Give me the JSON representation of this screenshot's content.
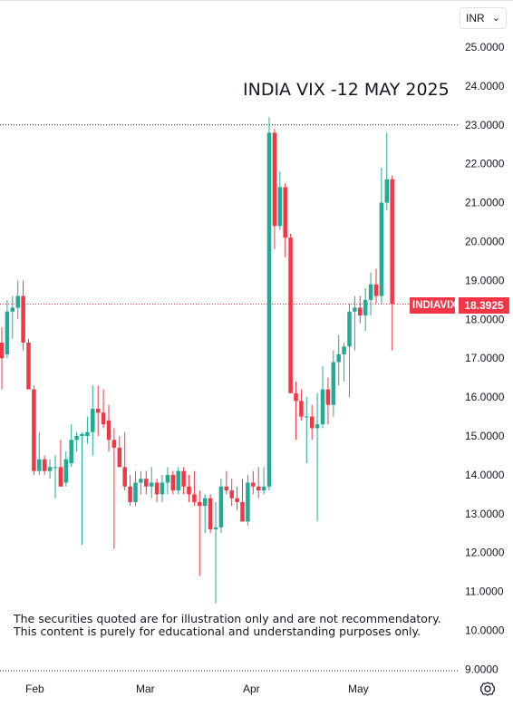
{
  "currency_selector": {
    "value": "INR"
  },
  "price_label": {
    "symbol": "INDIAVIX",
    "value": "18.3925"
  },
  "disclaimer": {
    "line1": "The securities quoted are for illustration only and are not recommendatory.",
    "line2": "This content is purely for educational and understanding purposes only."
  },
  "icons": {
    "settings": "settings-icon",
    "chevron": "chevron-down-icon"
  },
  "colors": {
    "up": "#22ab94",
    "down": "#f23645",
    "grid_dots": "#b2b5be"
  },
  "chart_data": {
    "type": "candlestick",
    "title": "INDIA VIX -12 MAY 2025",
    "ylim": [
      9,
      25.5
    ],
    "y_ticks": [
      "25.0000",
      "24.0000",
      "23.0000",
      "22.0000",
      "21.0000",
      "20.0000",
      "19.0000",
      "18.0000",
      "17.0000",
      "16.0000",
      "15.0000",
      "14.0000",
      "13.0000",
      "12.0000",
      "11.0000",
      "10.0000",
      "9.0000"
    ],
    "x_ticks": [
      "Feb",
      "Mar",
      "Apr",
      "May"
    ],
    "last_price": 18.3925,
    "dotted_level": 23.0,
    "grid": false,
    "candles": [
      {
        "o": 17.4,
        "h": 17.8,
        "l": 16.2,
        "c": 17.0
      },
      {
        "o": 17.1,
        "h": 18.5,
        "l": 17.0,
        "c": 18.2
      },
      {
        "o": 18.2,
        "h": 18.6,
        "l": 17.5,
        "c": 18.3
      },
      {
        "o": 18.3,
        "h": 19.0,
        "l": 18.0,
        "c": 18.6
      },
      {
        "o": 18.6,
        "h": 19.0,
        "l": 17.2,
        "c": 17.4
      },
      {
        "o": 17.4,
        "h": 17.5,
        "l": 16.2,
        "c": 16.2
      },
      {
        "o": 16.2,
        "h": 16.3,
        "l": 14.0,
        "c": 14.1
      },
      {
        "o": 14.1,
        "h": 15.1,
        "l": 14.0,
        "c": 14.4
      },
      {
        "o": 14.4,
        "h": 14.5,
        "l": 14.0,
        "c": 14.1
      },
      {
        "o": 14.1,
        "h": 14.4,
        "l": 13.9,
        "c": 14.2
      },
      {
        "o": 14.2,
        "h": 14.5,
        "l": 13.4,
        "c": 14.2
      },
      {
        "o": 14.2,
        "h": 14.9,
        "l": 13.7,
        "c": 13.7
      },
      {
        "o": 13.8,
        "h": 14.6,
        "l": 13.7,
        "c": 14.4
      },
      {
        "o": 14.3,
        "h": 15.3,
        "l": 14.2,
        "c": 14.9
      },
      {
        "o": 14.9,
        "h": 15.1,
        "l": 14.6,
        "c": 15.0
      },
      {
        "o": 15.0,
        "h": 15.1,
        "l": 12.2,
        "c": 15.05
      },
      {
        "o": 15.0,
        "h": 15.5,
        "l": 14.8,
        "c": 15.1
      },
      {
        "o": 15.1,
        "h": 16.3,
        "l": 14.5,
        "c": 15.7
      },
      {
        "o": 15.7,
        "h": 16.3,
        "l": 15.0,
        "c": 15.6
      },
      {
        "o": 15.6,
        "h": 16.2,
        "l": 15.2,
        "c": 15.3
      },
      {
        "o": 15.4,
        "h": 15.8,
        "l": 14.6,
        "c": 14.9
      },
      {
        "o": 14.9,
        "h": 15.2,
        "l": 12.1,
        "c": 14.7
      },
      {
        "o": 14.7,
        "h": 15.0,
        "l": 14.2,
        "c": 14.2
      },
      {
        "o": 14.2,
        "h": 15.1,
        "l": 13.6,
        "c": 13.7
      },
      {
        "o": 13.7,
        "h": 14.0,
        "l": 13.2,
        "c": 13.3
      },
      {
        "o": 13.3,
        "h": 14.1,
        "l": 13.2,
        "c": 13.8
      },
      {
        "o": 13.8,
        "h": 14.1,
        "l": 13.5,
        "c": 13.9
      },
      {
        "o": 13.9,
        "h": 14.1,
        "l": 13.5,
        "c": 13.7
      },
      {
        "o": 13.7,
        "h": 14.2,
        "l": 13.4,
        "c": 13.8
      },
      {
        "o": 13.8,
        "h": 13.9,
        "l": 13.3,
        "c": 13.5
      },
      {
        "o": 13.5,
        "h": 14.0,
        "l": 13.3,
        "c": 13.8
      },
      {
        "o": 13.8,
        "h": 14.2,
        "l": 13.5,
        "c": 14.0
      },
      {
        "o": 14.0,
        "h": 14.1,
        "l": 13.5,
        "c": 13.6
      },
      {
        "o": 13.6,
        "h": 14.2,
        "l": 13.5,
        "c": 14.1
      },
      {
        "o": 14.1,
        "h": 14.2,
        "l": 13.5,
        "c": 13.7
      },
      {
        "o": 13.7,
        "h": 14.0,
        "l": 13.3,
        "c": 13.5
      },
      {
        "o": 13.5,
        "h": 14.1,
        "l": 13.2,
        "c": 13.3
      },
      {
        "o": 13.3,
        "h": 13.6,
        "l": 11.4,
        "c": 13.2
      },
      {
        "o": 13.2,
        "h": 13.5,
        "l": 12.5,
        "c": 13.4
      },
      {
        "o": 13.4,
        "h": 13.5,
        "l": 12.5,
        "c": 12.6
      },
      {
        "o": 12.6,
        "h": 13.3,
        "l": 10.7,
        "c": 12.65
      },
      {
        "o": 12.65,
        "h": 13.9,
        "l": 12.5,
        "c": 13.7
      },
      {
        "o": 13.7,
        "h": 14.1,
        "l": 13.5,
        "c": 13.6
      },
      {
        "o": 13.6,
        "h": 13.9,
        "l": 13.2,
        "c": 13.4
      },
      {
        "o": 13.4,
        "h": 13.7,
        "l": 13.1,
        "c": 13.3
      },
      {
        "o": 13.3,
        "h": 13.9,
        "l": 12.8,
        "c": 12.8
      },
      {
        "o": 12.8,
        "h": 14.0,
        "l": 12.7,
        "c": 13.8
      },
      {
        "o": 13.8,
        "h": 14.1,
        "l": 13.5,
        "c": 13.7
      },
      {
        "o": 13.7,
        "h": 14.2,
        "l": 13.4,
        "c": 13.6
      },
      {
        "o": 13.6,
        "h": 14.2,
        "l": 13.5,
        "c": 13.7
      },
      {
        "o": 13.7,
        "h": 23.2,
        "l": 13.6,
        "c": 22.8
      },
      {
        "o": 22.8,
        "h": 22.9,
        "l": 19.8,
        "c": 20.4
      },
      {
        "o": 20.4,
        "h": 21.8,
        "l": 20.3,
        "c": 21.4
      },
      {
        "o": 21.4,
        "h": 21.5,
        "l": 19.6,
        "c": 20.1
      },
      {
        "o": 20.1,
        "h": 20.2,
        "l": 16.1,
        "c": 16.1
      },
      {
        "o": 16.1,
        "h": 16.4,
        "l": 14.9,
        "c": 15.9
      },
      {
        "o": 15.9,
        "h": 16.2,
        "l": 15.4,
        "c": 15.5
      },
      {
        "o": 15.5,
        "h": 16.0,
        "l": 14.3,
        "c": 15.5
      },
      {
        "o": 15.5,
        "h": 15.8,
        "l": 14.9,
        "c": 15.2
      },
      {
        "o": 15.2,
        "h": 16.1,
        "l": 12.8,
        "c": 15.3
      },
      {
        "o": 15.3,
        "h": 16.8,
        "l": 15.2,
        "c": 16.2
      },
      {
        "o": 16.2,
        "h": 16.5,
        "l": 15.3,
        "c": 15.8
      },
      {
        "o": 15.8,
        "h": 17.2,
        "l": 15.5,
        "c": 16.9
      },
      {
        "o": 16.9,
        "h": 17.6,
        "l": 16.3,
        "c": 17.1
      },
      {
        "o": 17.1,
        "h": 17.4,
        "l": 16.4,
        "c": 17.3
      },
      {
        "o": 17.3,
        "h": 18.4,
        "l": 16.0,
        "c": 18.2
      },
      {
        "o": 18.2,
        "h": 18.6,
        "l": 17.2,
        "c": 18.3
      },
      {
        "o": 18.3,
        "h": 18.6,
        "l": 17.9,
        "c": 18.1
      },
      {
        "o": 18.1,
        "h": 18.8,
        "l": 17.7,
        "c": 18.5
      },
      {
        "o": 18.5,
        "h": 19.2,
        "l": 18.1,
        "c": 18.9
      },
      {
        "o": 18.9,
        "h": 19.3,
        "l": 18.4,
        "c": 18.6
      },
      {
        "o": 18.6,
        "h": 21.9,
        "l": 18.4,
        "c": 21.0
      },
      {
        "o": 21.0,
        "h": 22.8,
        "l": 20.8,
        "c": 21.6
      },
      {
        "o": 21.6,
        "h": 21.7,
        "l": 17.2,
        "c": 18.3925
      }
    ]
  }
}
